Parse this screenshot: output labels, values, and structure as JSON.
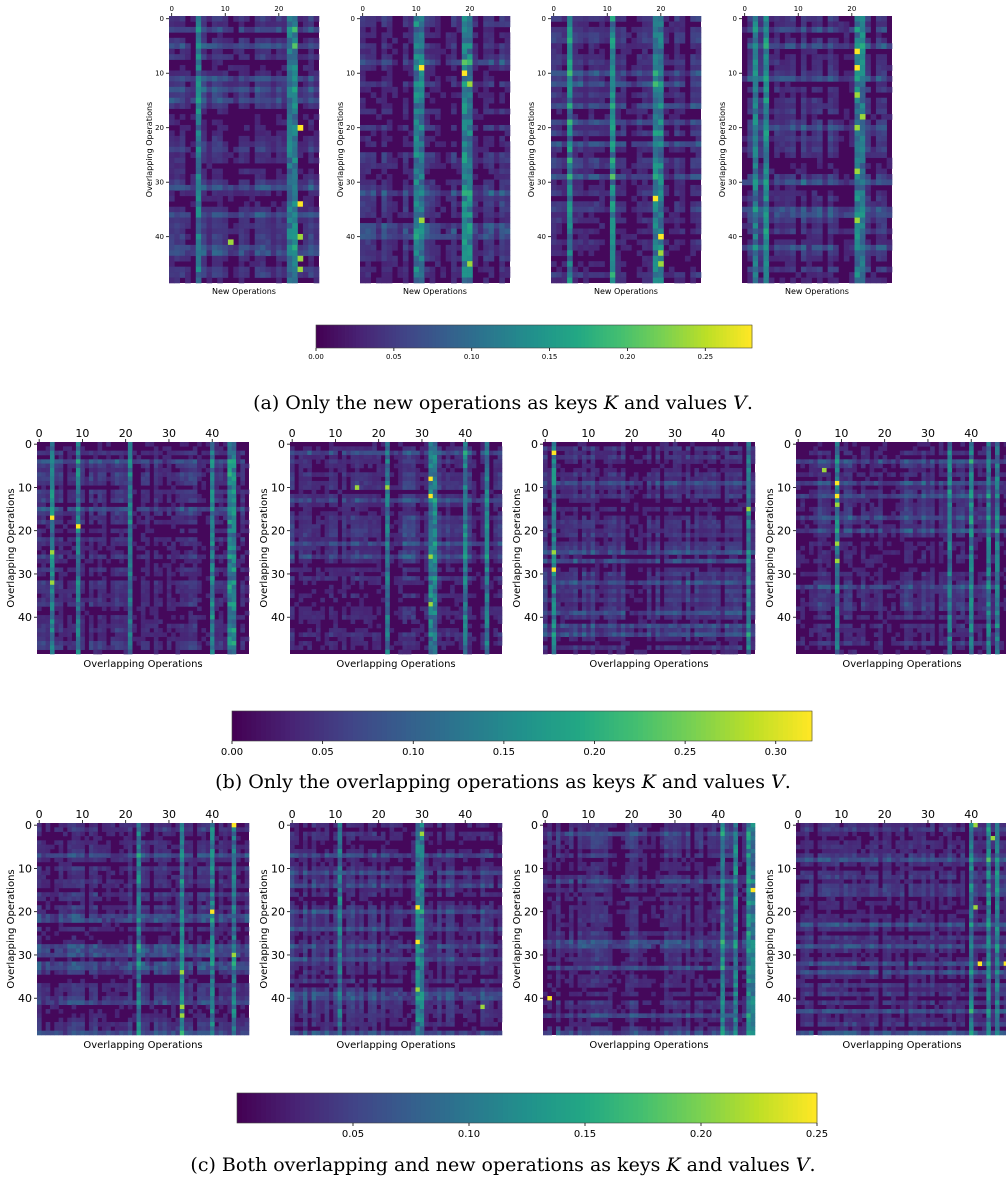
{
  "figure": {
    "captions": {
      "a": {
        "prefix": "(a) Only the new operations as keys ",
        "k": "K",
        "mid": " and values ",
        "v": "V",
        "suffix": "."
      },
      "b": {
        "prefix": "(b) Only the overlapping operations as keys ",
        "k": "K",
        "mid": " and values ",
        "v": "V",
        "suffix": "."
      },
      "c": {
        "prefix": "(c) Both overlapping and new operations as keys ",
        "k": "K",
        "mid": " and values ",
        "v": "V",
        "suffix": "."
      }
    }
  },
  "chart_data": [
    {
      "type": "heatmap",
      "group": "a",
      "ylabel": "Overlapping Operations",
      "xlabel": "New Operations",
      "rows": 49,
      "cols": 28,
      "x_ticks": [
        0,
        10,
        20
      ],
      "y_ticks": [
        0,
        10,
        20,
        30,
        40
      ],
      "colorbar": {
        "min": 0,
        "max": 0.28,
        "ticks": [
          "0.00",
          "0.05",
          "0.10",
          "0.15",
          "0.20",
          "0.25"
        ]
      },
      "panels": [
        {
          "index": 1,
          "hot_cols": [
            5,
            22,
            23
          ],
          "peaks": [
            [
              20,
              24
            ],
            [
              34,
              24
            ],
            [
              40,
              24
            ],
            [
              44,
              24
            ],
            [
              46,
              24
            ],
            [
              41,
              11
            ]
          ]
        },
        {
          "index": 2,
          "hot_cols": [
            10,
            11,
            19,
            20
          ],
          "peaks": [
            [
              9,
              11
            ],
            [
              10,
              19
            ],
            [
              12,
              20
            ],
            [
              37,
              11
            ],
            [
              45,
              20
            ]
          ]
        },
        {
          "index": 3,
          "hot_cols": [
            3,
            11,
            19,
            20
          ],
          "peaks": [
            [
              33,
              19
            ],
            [
              40,
              20
            ],
            [
              43,
              20
            ],
            [
              45,
              20
            ]
          ]
        },
        {
          "index": 4,
          "hot_cols": [
            2,
            4,
            21,
            22
          ],
          "peaks": [
            [
              6,
              21
            ],
            [
              9,
              21
            ],
            [
              20,
              21
            ],
            [
              28,
              21
            ],
            [
              37,
              21
            ],
            [
              14,
              21
            ],
            [
              18,
              22
            ]
          ]
        }
      ]
    },
    {
      "type": "heatmap",
      "group": "b",
      "ylabel": "Overlapping Operations",
      "xlabel": "Overlapping Operations",
      "rows": 49,
      "cols": 49,
      "x_ticks": [
        0,
        10,
        20,
        30,
        40
      ],
      "y_ticks": [
        0,
        10,
        20,
        30,
        40
      ],
      "colorbar": {
        "min": 0,
        "max": 0.32,
        "ticks": [
          "0.00",
          "0.05",
          "0.10",
          "0.15",
          "0.20",
          "0.25",
          "0.30"
        ]
      },
      "panels": [
        {
          "index": 1,
          "hot_cols": [
            3,
            9,
            21,
            40,
            44,
            45
          ],
          "peaks": [
            [
              17,
              3
            ],
            [
              19,
              9
            ],
            [
              32,
              3
            ],
            [
              25,
              3
            ]
          ]
        },
        {
          "index": 2,
          "hot_cols": [
            22,
            32,
            33,
            40,
            45
          ],
          "peaks": [
            [
              8,
              32
            ],
            [
              12,
              32
            ],
            [
              10,
              22
            ],
            [
              26,
              32
            ],
            [
              37,
              32
            ],
            [
              10,
              15
            ]
          ]
        },
        {
          "index": 3,
          "hot_cols": [
            2,
            47
          ],
          "peaks": [
            [
              2,
              2
            ],
            [
              29,
              2
            ],
            [
              15,
              47
            ],
            [
              25,
              2
            ]
          ]
        },
        {
          "index": 4,
          "hot_cols": [
            9,
            35,
            40,
            44,
            46
          ],
          "peaks": [
            [
              9,
              9
            ],
            [
              12,
              9
            ],
            [
              14,
              9
            ],
            [
              23,
              9
            ],
            [
              27,
              9
            ],
            [
              6,
              6
            ]
          ]
        }
      ]
    },
    {
      "type": "heatmap",
      "group": "c",
      "ylabel": "Overlapping Operations",
      "xlabel": "Overlapping Operations",
      "rows": 49,
      "cols": 49,
      "x_ticks": [
        0,
        10,
        20,
        30,
        40
      ],
      "y_ticks": [
        0,
        10,
        20,
        30,
        40
      ],
      "colorbar": {
        "min": 0,
        "max": 0.25,
        "ticks": [
          "0.05",
          "0.10",
          "0.15",
          "0.20",
          "0.25"
        ]
      },
      "panels": [
        {
          "index": 1,
          "hot_cols": [
            23,
            33,
            40,
            45
          ],
          "peaks": [
            [
              20,
              40
            ],
            [
              0,
              45
            ],
            [
              34,
              33
            ],
            [
              42,
              33
            ],
            [
              44,
              33
            ],
            [
              30,
              45
            ]
          ]
        },
        {
          "index": 2,
          "hot_cols": [
            11,
            29,
            30
          ],
          "peaks": [
            [
              27,
              29
            ],
            [
              19,
              29
            ],
            [
              38,
              29
            ],
            [
              42,
              44
            ],
            [
              2,
              30
            ]
          ]
        },
        {
          "index": 3,
          "hot_cols": [
            41,
            44,
            47,
            48
          ],
          "peaks": [
            [
              15,
              48
            ],
            [
              40,
              1
            ]
          ]
        },
        {
          "index": 4,
          "hot_cols": [
            40,
            44,
            46
          ],
          "peaks": [
            [
              32,
              42
            ],
            [
              32,
              48
            ],
            [
              0,
              41
            ],
            [
              3,
              45
            ],
            [
              19,
              41
            ]
          ]
        }
      ]
    }
  ]
}
